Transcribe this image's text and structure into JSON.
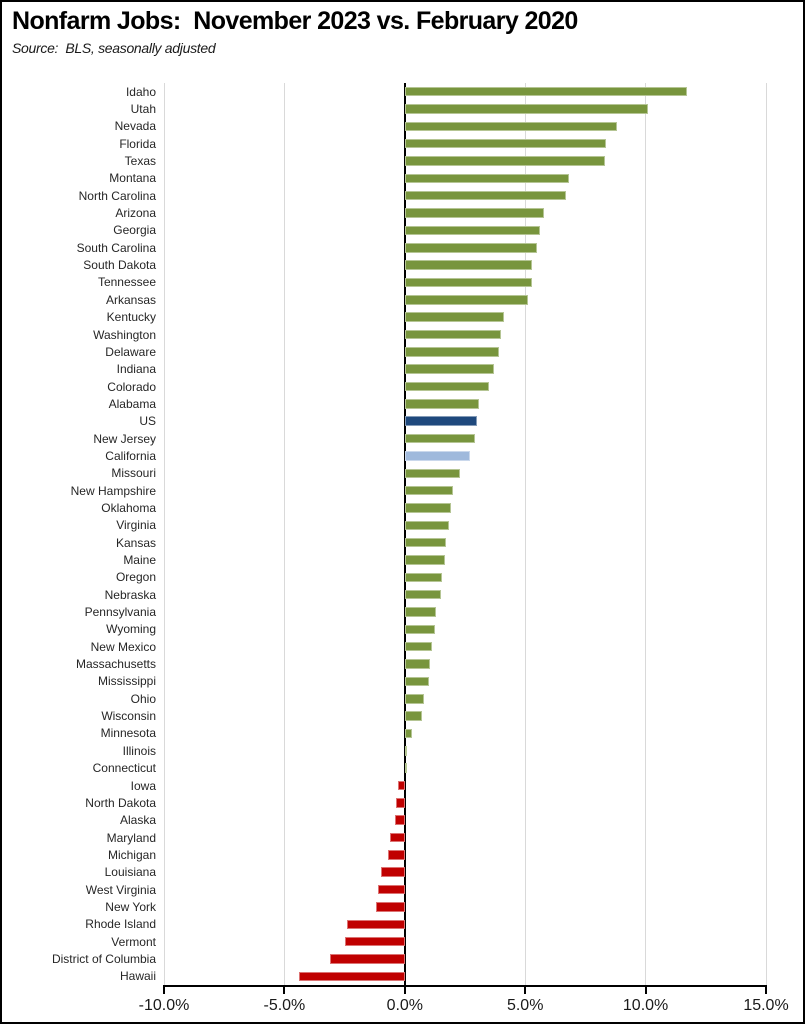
{
  "header": {
    "title": "Nonfarm Jobs:  November 2023 vs. February 2020",
    "source": "Source:  BLS, seasonally adjusted"
  },
  "chart_data": {
    "type": "bar",
    "orientation": "horizontal",
    "title": "Nonfarm Jobs:  November 2023 vs. February 2020",
    "subtitle": "Source:  BLS, seasonally adjusted",
    "xlabel": "",
    "ylabel": "",
    "units": "percent change",
    "xlim": [
      -10,
      15
    ],
    "grid": true,
    "x_ticks": [
      {
        "value": -10,
        "label": "-10.0%"
      },
      {
        "value": -5,
        "label": "-5.0%"
      },
      {
        "value": 0,
        "label": "0.0%"
      },
      {
        "value": 5,
        "label": "5.0%"
      },
      {
        "value": 10,
        "label": "10.0%"
      },
      {
        "value": 15,
        "label": "15.0%"
      }
    ],
    "colors": {
      "positive": "#78953d",
      "negative": "#c00000",
      "us": "#1f497d",
      "california": "#9fb9dc",
      "gridline": "#d9d9d9",
      "axis": "#000000"
    },
    "items": [
      {
        "label": "Idaho",
        "value": 11.7,
        "color": "positive"
      },
      {
        "label": "Utah",
        "value": 10.1,
        "color": "positive"
      },
      {
        "label": "Nevada",
        "value": 8.8,
        "color": "positive"
      },
      {
        "label": "Florida",
        "value": 8.35,
        "color": "positive"
      },
      {
        "label": "Texas",
        "value": 8.3,
        "color": "positive"
      },
      {
        "label": "Montana",
        "value": 6.8,
        "color": "positive"
      },
      {
        "label": "North Carolina",
        "value": 6.7,
        "color": "positive"
      },
      {
        "label": "Arizona",
        "value": 5.8,
        "color": "positive"
      },
      {
        "label": "Georgia",
        "value": 5.6,
        "color": "positive"
      },
      {
        "label": "South Carolina",
        "value": 5.5,
        "color": "positive"
      },
      {
        "label": "South Dakota",
        "value": 5.3,
        "color": "positive"
      },
      {
        "label": "Tennessee",
        "value": 5.3,
        "color": "positive"
      },
      {
        "label": "Arkansas",
        "value": 5.1,
        "color": "positive"
      },
      {
        "label": "Kentucky",
        "value": 4.1,
        "color": "positive"
      },
      {
        "label": "Washington",
        "value": 4.0,
        "color": "positive"
      },
      {
        "label": "Delaware",
        "value": 3.9,
        "color": "positive"
      },
      {
        "label": "Indiana",
        "value": 3.7,
        "color": "positive"
      },
      {
        "label": "Colorado",
        "value": 3.5,
        "color": "positive"
      },
      {
        "label": "Alabama",
        "value": 3.1,
        "color": "positive"
      },
      {
        "label": "US",
        "value": 3.0,
        "color": "us"
      },
      {
        "label": "New Jersey",
        "value": 2.9,
        "color": "positive"
      },
      {
        "label": "California",
        "value": 2.7,
        "color": "california"
      },
      {
        "label": "Missouri",
        "value": 2.3,
        "color": "positive"
      },
      {
        "label": "New Hampshire",
        "value": 2.0,
        "color": "positive"
      },
      {
        "label": "Oklahoma",
        "value": 1.9,
        "color": "positive"
      },
      {
        "label": "Virginia",
        "value": 1.85,
        "color": "positive"
      },
      {
        "label": "Kansas",
        "value": 1.7,
        "color": "positive"
      },
      {
        "label": "Maine",
        "value": 1.65,
        "color": "positive"
      },
      {
        "label": "Oregon",
        "value": 1.55,
        "color": "positive"
      },
      {
        "label": "Nebraska",
        "value": 1.5,
        "color": "positive"
      },
      {
        "label": "Pennsylvania",
        "value": 1.3,
        "color": "positive"
      },
      {
        "label": "Wyoming",
        "value": 1.25,
        "color": "positive"
      },
      {
        "label": "New Mexico",
        "value": 1.15,
        "color": "positive"
      },
      {
        "label": "Massachusetts",
        "value": 1.05,
        "color": "positive"
      },
      {
        "label": "Mississippi",
        "value": 1.0,
        "color": "positive"
      },
      {
        "label": "Ohio",
        "value": 0.8,
        "color": "positive"
      },
      {
        "label": "Wisconsin",
        "value": 0.7,
        "color": "positive"
      },
      {
        "label": "Minnesota",
        "value": 0.3,
        "color": "positive"
      },
      {
        "label": "Illinois",
        "value": 0.1,
        "color": "positive"
      },
      {
        "label": "Connecticut",
        "value": 0.05,
        "color": "positive"
      },
      {
        "label": "Iowa",
        "value": -0.3,
        "color": "negative"
      },
      {
        "label": "North Dakota",
        "value": -0.35,
        "color": "negative"
      },
      {
        "label": "Alaska",
        "value": -0.4,
        "color": "negative"
      },
      {
        "label": "Maryland",
        "value": -0.6,
        "color": "negative"
      },
      {
        "label": "Michigan",
        "value": -0.7,
        "color": "negative"
      },
      {
        "label": "Louisiana",
        "value": -1.0,
        "color": "negative"
      },
      {
        "label": "West Virginia",
        "value": -1.1,
        "color": "negative"
      },
      {
        "label": "New York",
        "value": -1.2,
        "color": "negative"
      },
      {
        "label": "Rhode Island",
        "value": -2.4,
        "color": "negative"
      },
      {
        "label": "Vermont",
        "value": -2.5,
        "color": "negative"
      },
      {
        "label": "District of Columbia",
        "value": -3.1,
        "color": "negative"
      },
      {
        "label": "Hawaii",
        "value": -4.4,
        "color": "negative"
      }
    ]
  }
}
